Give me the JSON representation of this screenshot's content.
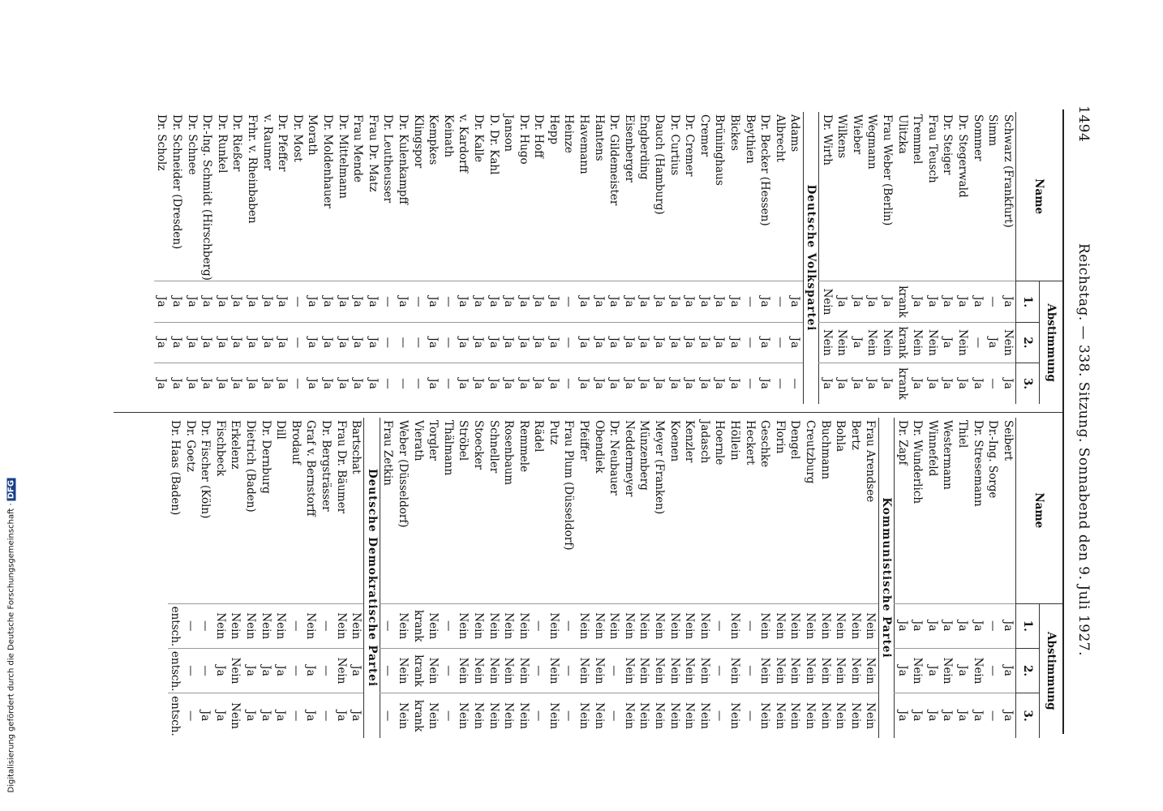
{
  "header": {
    "page_number": "1494",
    "title": "Reichstag. — 338. Sitzung. Sonnabend den 9. Juli 1927."
  },
  "columns": [
    {
      "head": {
        "name": "Name",
        "vote": "Abstimmung",
        "numbers": [
          "1.",
          "2.",
          "3."
        ]
      },
      "sections": [
        {
          "rows": [
            [
              "Schwarz (Frankfurt)",
              "Ja",
              "Nein",
              "Ja"
            ],
            [
              "Simm",
              "—",
              "Ja",
              "—"
            ],
            [
              "Sommer",
              "Ja",
              "—",
              "Ja"
            ],
            [
              "Dr. Stegerwald",
              "Ja",
              "Nein",
              "Ja"
            ],
            [
              "Dr. Steiger",
              "Ja",
              "Ja",
              "Ja"
            ],
            [
              "Frau Teusch",
              "Ja",
              "Nein",
              "Ja"
            ],
            [
              "Tremmel",
              "Ja",
              "Nein",
              "Ja"
            ],
            [
              "Ulitzka",
              "krank",
              "krank",
              "krank"
            ],
            [
              "Frau Weber (Berlin)",
              "Ja",
              "Nein",
              "Ja"
            ],
            [
              "Wegmann",
              "Ja",
              "Nein",
              "Ja"
            ],
            [
              "Wieber",
              "Ja",
              "Ja",
              "Ja"
            ],
            [
              "Wilkens",
              "Ja",
              "Nein",
              "Ja"
            ],
            [
              "Dr. Wirth",
              "Nein",
              "Nein",
              "Ja"
            ]
          ]
        },
        {
          "title": "Deutsche Volkspartei",
          "rows": [
            [
              "Adams",
              "Ja",
              "Ja",
              "—"
            ],
            [
              "Albrecht",
              "—",
              "—",
              "—"
            ],
            [
              "Dr. Becker (Hessen)",
              "Ja",
              "Ja",
              "Ja"
            ],
            [
              "Beythien",
              "—",
              "—",
              "—"
            ],
            [
              "Bickes",
              "Ja",
              "Ja",
              "Ja"
            ],
            [
              "Brüninghaus",
              "Ja",
              "Ja",
              "Ja"
            ],
            [
              "Cremer",
              "Ja",
              "Ja",
              "Ja"
            ],
            [
              "Dr. Cremer",
              "Ja",
              "Ja",
              "Ja"
            ],
            [
              "Dr. Curtius",
              "Ja",
              "Ja",
              "Ja"
            ],
            [
              "Dauch (Hamburg)",
              "Ja",
              "Ja",
              "Ja"
            ],
            [
              "Engberding",
              "Ja",
              "Ja",
              "Ja"
            ],
            [
              "Eisenberger",
              "Ja",
              "Ja",
              "Ja"
            ],
            [
              "Dr. Gildemeister",
              "Ja",
              "Ja",
              "Ja"
            ],
            [
              "Hantens",
              "Ja",
              "Ja",
              "Ja"
            ],
            [
              "Havemann",
              "Ja",
              "Ja",
              "Ja"
            ],
            [
              "Heinze",
              "—",
              "—",
              "—"
            ],
            [
              "Hepp",
              "Ja",
              "Ja",
              "Ja"
            ],
            [
              "Dr. Hoff",
              "Ja",
              "Ja",
              "Ja"
            ],
            [
              "Dr. Hugo",
              "Ja",
              "Ja",
              "Ja"
            ],
            [
              "Janson",
              "Ja",
              "Ja",
              "Ja"
            ],
            [
              "D. Dr. Kahl",
              "Ja",
              "Ja",
              "Ja"
            ],
            [
              "Dr. Kalle",
              "Ja",
              "Ja",
              "Ja"
            ],
            [
              "v. Kardorff",
              "Ja",
              "Ja",
              "Ja"
            ],
            [
              "Keinath",
              "—",
              "—",
              "—"
            ],
            [
              "Kempkes",
              "Ja",
              "Ja",
              "Ja"
            ],
            [
              "Klingspor",
              "—",
              "—",
              "—"
            ],
            [
              "Dr. Kulenkampff",
              "Ja",
              "—",
              "—"
            ],
            [
              "Dr. Leutheusser",
              "—",
              "—",
              "—"
            ],
            [
              "Frau Dr. Matz",
              "Ja",
              "Ja",
              "Ja"
            ],
            [
              "Frau Mende",
              "Ja",
              "Ja",
              "Ja"
            ],
            [
              "Dr. Mittelmann",
              "Ja",
              "Ja",
              "Ja"
            ],
            [
              "Dr. Moldenhauer",
              "Ja",
              "Ja",
              "Ja"
            ],
            [
              "Morath",
              "Ja",
              "Ja",
              "Ja"
            ],
            [
              "Dr. Most",
              "—",
              "—",
              "—"
            ],
            [
              "Dr. Pfeffer",
              "Ja",
              "Ja",
              "Ja"
            ],
            [
              "v. Raumer",
              "Ja",
              "Ja",
              "Ja"
            ],
            [
              "Frhr. v. Rheinbaben",
              "Ja",
              "Ja",
              "Ja"
            ],
            [
              "Dr. Rießer",
              "Ja",
              "Ja",
              "Ja"
            ],
            [
              "Dr. Runkel",
              "Ja",
              "Ja",
              "Ja"
            ],
            [
              "Dr.-Ing. Schmidt (Hirschberg)",
              "Ja",
              "Ja",
              "Ja"
            ],
            [
              "Dr. Schnee",
              "Ja",
              "Ja",
              "Ja"
            ],
            [
              "Dr. Schneider (Dresden)",
              "Ja",
              "Ja",
              "Ja"
            ],
            [
              "Dr. Scholz",
              "Ja",
              "Ja",
              "Ja"
            ]
          ]
        }
      ]
    },
    {
      "head": {
        "name": "Name",
        "vote": "Abstimmung",
        "numbers": [
          "1.",
          "2.",
          "3."
        ]
      },
      "sections": [
        {
          "rows": [
            [
              "Seibert",
              "Ja",
              "Ja",
              "Ja"
            ],
            [
              "Dr.-Ing. Sorge",
              "—",
              "—",
              "—"
            ],
            [
              "Dr. Stresemann",
              "Ja",
              "Nein",
              "Ja"
            ],
            [
              "Thiel",
              "Ja",
              "Ja",
              "Ja"
            ],
            [
              "Westermann",
              "Ja",
              "Nein",
              "Ja"
            ],
            [
              "Winnefeld",
              "Ja",
              "Ja",
              "Ja"
            ],
            [
              "Dr. Wunderlich",
              "Ja",
              "Nein",
              "Ja"
            ],
            [
              "Dr. Zapf",
              "Ja",
              "Ja",
              "Ja"
            ]
          ]
        },
        {
          "title": "Kommunistische Partei",
          "rows": [
            [
              "Frau Arendsee",
              "Nein",
              "Nein",
              "Nein"
            ],
            [
              "Bertz",
              "Nein",
              "Nein",
              "Nein"
            ],
            [
              "Bohla",
              "Nein",
              "Nein",
              "Nein"
            ],
            [
              "Buchmann",
              "Nein",
              "Nein",
              "Nein"
            ],
            [
              "Creutzburg",
              "Nein",
              "Nein",
              "Nein"
            ],
            [
              "Dengel",
              "Nein",
              "Nein",
              "Nein"
            ],
            [
              "Florin",
              "Nein",
              "Nein",
              "Nein"
            ],
            [
              "Geschke",
              "Nein",
              "Nein",
              "Nein"
            ],
            [
              "Heckert",
              "—",
              "—",
              "—"
            ],
            [
              "Höllein",
              "Nein",
              "Nein",
              "Nein"
            ],
            [
              "Hoernle",
              "—",
              "—",
              "—"
            ],
            [
              "Jadasch",
              "Nein",
              "Nein",
              "Nein"
            ],
            [
              "Kenzler",
              "Nein",
              "Nein",
              "Nein"
            ],
            [
              "Koenen",
              "Nein",
              "Nein",
              "Nein"
            ],
            [
              "Meyer (Franken)",
              "Nein",
              "Nein",
              "Nein"
            ],
            [
              "Münzenberg",
              "Nein",
              "Nein",
              "Nein"
            ],
            [
              "Neddermeyer",
              "Nein",
              "Nein",
              "Nein"
            ],
            [
              "Dr. Neubauer",
              "Nein",
              "—",
              "—"
            ],
            [
              "Obendiek",
              "Nein",
              "Nein",
              "Nein"
            ],
            [
              "Pfeiffer",
              "Nein",
              "Nein",
              "Nein"
            ],
            [
              "Frau Plum (Düsseldorf)",
              "—",
              "—",
              "—"
            ],
            [
              "Putz",
              "Nein",
              "Nein",
              "Nein"
            ],
            [
              "Rädel",
              "—",
              "—",
              "—"
            ],
            [
              "Remmele",
              "Nein",
              "Nein",
              "Nein"
            ],
            [
              "Rosenbaum",
              "Nein",
              "Nein",
              "Nein"
            ],
            [
              "Schneller",
              "Nein",
              "Nein",
              "Nein"
            ],
            [
              "Stoecker",
              "Nein",
              "Nein",
              "Nein"
            ],
            [
              "Ströbel",
              "Nein",
              "Nein",
              "Nein"
            ],
            [
              "Thälmann",
              "—",
              "—",
              "—"
            ],
            [
              "Torgler",
              "Nein",
              "Nein",
              "Nein"
            ],
            [
              "Vierath",
              "krank",
              "krank",
              "krank"
            ],
            [
              "Weber (Düsseldorf)",
              "Nein",
              "Nein",
              "Nein"
            ],
            [
              "Frau Zetkin",
              "—",
              "—",
              "—"
            ]
          ]
        },
        {
          "title": "Deutsche Demokratische Partei",
          "rows": [
            [
              "Bartschat",
              "Nein",
              "Ja",
              "Ja"
            ],
            [
              "Frau Dr. Bäumer",
              "Nein",
              "Nein",
              "Ja"
            ],
            [
              "Dr. Bergsträsser",
              "—",
              "—",
              "—"
            ],
            [
              "Graf v. Bernstorff",
              "Nein",
              "Ja",
              "Ja"
            ],
            [
              "Brodauf",
              "—",
              "—",
              "—"
            ],
            [
              "Dill",
              "Nein",
              "Ja",
              "Ja"
            ],
            [
              "Dr. Dernburg",
              "Nein",
              "Ja",
              "Ja"
            ],
            [
              "Dietrich (Baden)",
              "Nein",
              "Ja",
              "Ja"
            ],
            [
              "Erkelenz",
              "Nein",
              "Nein",
              "Nein"
            ],
            [
              "Fischbeck",
              "Nein",
              "Ja",
              "Ja"
            ],
            [
              "Dr. Fischer (Köln)",
              "—",
              "—",
              "Ja"
            ],
            [
              "Dr. Goetz",
              "—",
              "—",
              "—"
            ],
            [
              "Dr. Haas (Baden)",
              "entsch.",
              "entsch.",
              "entsch."
            ]
          ]
        }
      ]
    }
  ],
  "footer": {
    "text": "Digitalisierung gefördert durch die Deutsche Forschungsgemeinschaft ·",
    "logo": "DFG"
  }
}
